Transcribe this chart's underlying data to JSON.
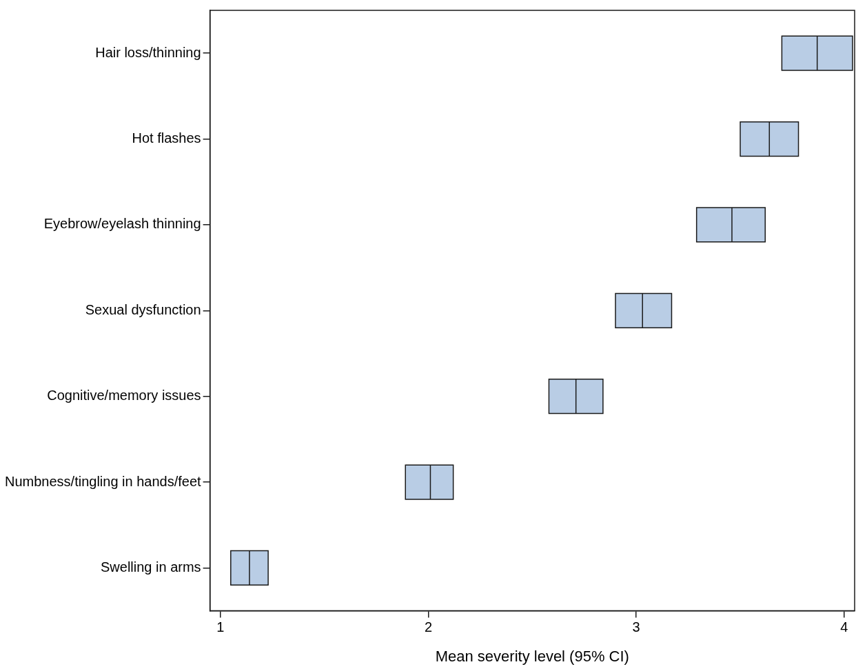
{
  "chart_data": {
    "type": "box",
    "orientation": "horizontal",
    "xlabel": "Mean severity level (95% CI)",
    "categories": [
      "Hair loss/thinning",
      "Hot flashes",
      "Eyebrow/eyelash thinning",
      "Sexual dysfunction",
      "Cognitive/memory issues",
      "Numbness/tingling in hands/feet",
      "Swelling in arms"
    ],
    "color": "#b9cde5",
    "boxes": [
      {
        "low": 3.7,
        "q1": 3.7,
        "median": 3.87,
        "q3": 4.04,
        "high": 4.04
      },
      {
        "low": 3.5,
        "q1": 3.5,
        "median": 3.64,
        "q3": 3.78,
        "high": 3.78
      },
      {
        "low": 3.29,
        "q1": 3.29,
        "median": 3.46,
        "q3": 3.62,
        "high": 3.62
      },
      {
        "low": 2.9,
        "q1": 2.9,
        "median": 3.03,
        "q3": 3.17,
        "high": 3.17
      },
      {
        "low": 2.58,
        "q1": 2.58,
        "median": 2.71,
        "q3": 2.84,
        "high": 2.84
      },
      {
        "low": 1.89,
        "q1": 1.89,
        "median": 2.01,
        "q3": 2.12,
        "high": 2.12
      },
      {
        "low": 1.05,
        "q1": 1.05,
        "median": 1.14,
        "q3": 1.23,
        "high": 1.23
      }
    ],
    "xlim": [
      0.95,
      4.05
    ],
    "xticks": [
      1,
      2,
      3,
      4
    ],
    "grid": false,
    "legend": false
  }
}
